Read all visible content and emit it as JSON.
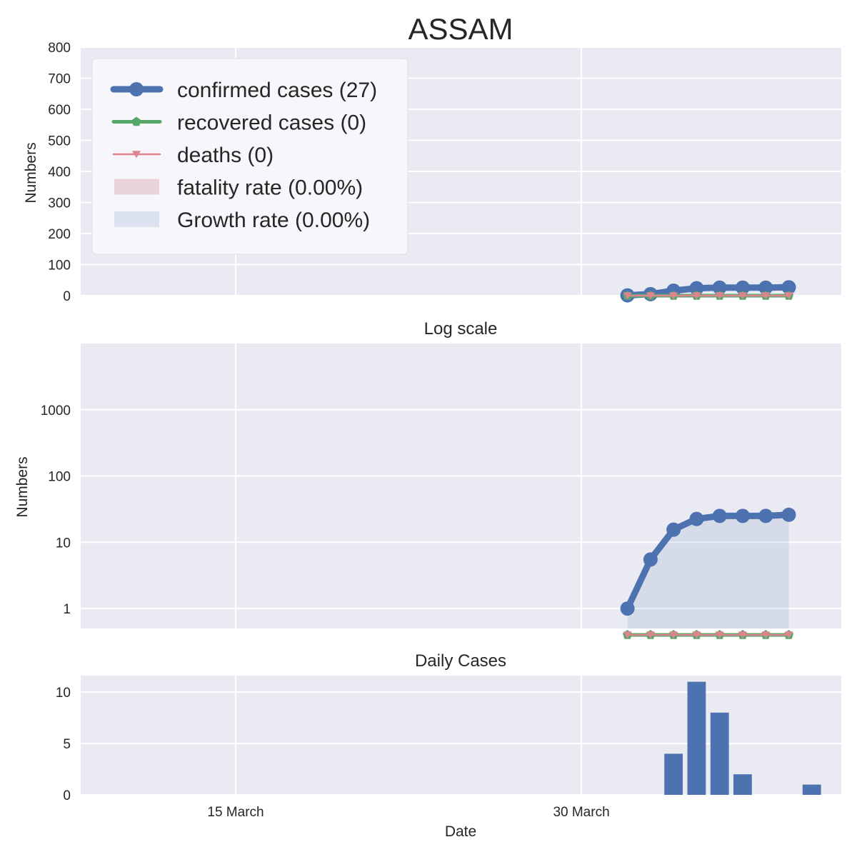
{
  "chart_data": [
    {
      "type": "line",
      "title": "ASSAM",
      "xlabel": "",
      "ylabel": "Numbers",
      "ylim": [
        0,
        800
      ],
      "yticks": [
        0,
        100,
        200,
        300,
        400,
        500,
        600,
        700,
        800
      ],
      "xticks": [],
      "grid": true,
      "x": [
        "2020-04-01",
        "2020-04-02",
        "2020-04-03",
        "2020-04-04",
        "2020-04-05",
        "2020-04-06",
        "2020-04-07",
        "2020-04-08"
      ],
      "series": [
        {
          "name": "confirmed cases (27)",
          "color": "#4c72b0",
          "marker": "circle",
          "values": [
            1,
            5,
            16,
            24,
            26,
            26,
            26,
            27
          ]
        },
        {
          "name": "recovered cases (0)",
          "color": "#55a868",
          "marker": "pentagon",
          "values": [
            0,
            0,
            0,
            0,
            0,
            0,
            0,
            0
          ]
        },
        {
          "name": "deaths (0)",
          "color": "#dd8490",
          "marker": "triangle-down",
          "values": [
            0,
            0,
            0,
            0,
            0,
            0,
            0,
            0
          ]
        }
      ],
      "legend": {
        "placement": "upper-left",
        "entries": [
          {
            "label": "confirmed cases (27)",
            "kind": "line",
            "color": "#4c72b0",
            "marker": "circle"
          },
          {
            "label": "recovered cases (0)",
            "kind": "line",
            "color": "#55a868",
            "marker": "pentagon"
          },
          {
            "label": "deaths (0)",
            "kind": "line",
            "color": "#dd8490",
            "marker": "triangle-down"
          },
          {
            "label": "fatality rate (0.00%)",
            "kind": "patch",
            "color": "#ead3da"
          },
          {
            "label": "Growth rate (0.00%)",
            "kind": "patch",
            "color": "#dde2f0"
          }
        ]
      }
    },
    {
      "type": "line",
      "title": "Log scale",
      "xlabel": "",
      "ylabel": "Numbers",
      "yscale": "log",
      "ylim": [
        0.5,
        10000
      ],
      "yticks": [
        1,
        10,
        100,
        1000
      ],
      "ytick_labels": [
        "1",
        "10",
        "100",
        "1000"
      ],
      "xticks": [],
      "grid": true,
      "x": [
        "2020-04-01",
        "2020-04-02",
        "2020-04-03",
        "2020-04-04",
        "2020-04-05",
        "2020-04-06",
        "2020-04-07",
        "2020-04-08"
      ],
      "series": [
        {
          "name": "confirmed cases (27)",
          "color": "#4c72b0",
          "marker": "circle",
          "fill": true,
          "values": [
            1,
            5.5,
            15.5,
            22.5,
            25,
            25,
            25,
            26
          ]
        },
        {
          "name": "recovered cases (0)",
          "color": "#55a868",
          "marker": "pentagon",
          "values": [
            0.4,
            0.4,
            0.4,
            0.4,
            0.4,
            0.4,
            0.4,
            0.4
          ]
        },
        {
          "name": "deaths (0)",
          "color": "#dd8490",
          "marker": "triangle-down",
          "values": [
            0.4,
            0.4,
            0.4,
            0.4,
            0.4,
            0.4,
            0.4,
            0.4
          ]
        }
      ]
    },
    {
      "type": "bar",
      "title": "Daily Cases",
      "xlabel": "Date",
      "ylabel": "",
      "ylim": [
        0,
        11.6
      ],
      "yticks": [
        0,
        5,
        10
      ],
      "grid": true,
      "xticks": [
        {
          "date": "2020-03-15",
          "label": "15 March"
        },
        {
          "date": "2020-03-30",
          "label": "30 March"
        }
      ],
      "categories": [
        "2020-04-03",
        "2020-04-04",
        "2020-04-05",
        "2020-04-06",
        "2020-04-07",
        "2020-04-08",
        "2020-04-09"
      ],
      "values": [
        4,
        11,
        8,
        2,
        0,
        0,
        1
      ],
      "color": "#4c72b0"
    }
  ]
}
